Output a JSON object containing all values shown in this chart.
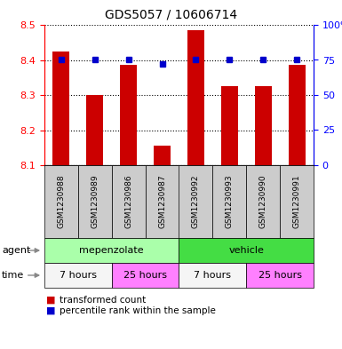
{
  "title": "GDS5057 / 10606714",
  "samples": [
    "GSM1230988",
    "GSM1230989",
    "GSM1230986",
    "GSM1230987",
    "GSM1230992",
    "GSM1230993",
    "GSM1230990",
    "GSM1230991"
  ],
  "red_values": [
    8.425,
    8.3,
    8.385,
    8.155,
    8.485,
    8.325,
    8.325,
    8.385
  ],
  "blue_values": [
    75,
    75,
    75,
    72,
    75,
    75,
    75,
    75
  ],
  "ylim_left": [
    8.1,
    8.5
  ],
  "ylim_right": [
    0,
    100
  ],
  "yticks_left": [
    8.1,
    8.2,
    8.3,
    8.4,
    8.5
  ],
  "yticks_right": [
    0,
    25,
    50,
    75,
    100
  ],
  "agent_labels": [
    {
      "label": "mepenzolate",
      "start": 0,
      "end": 4,
      "color": "#aaffaa"
    },
    {
      "label": "vehicle",
      "start": 4,
      "end": 8,
      "color": "#44dd44"
    }
  ],
  "time_labels": [
    {
      "label": "7 hours",
      "start": 0,
      "end": 2,
      "color": "#f5f5f5"
    },
    {
      "label": "25 hours",
      "start": 2,
      "end": 4,
      "color": "#ff80ff"
    },
    {
      "label": "7 hours",
      "start": 4,
      "end": 6,
      "color": "#f5f5f5"
    },
    {
      "label": "25 hours",
      "start": 6,
      "end": 8,
      "color": "#ff80ff"
    }
  ],
  "sample_bg_color": "#cccccc",
  "bar_color": "#cc0000",
  "dot_color": "#0000cc",
  "legend_red": "transformed count",
  "legend_blue": "percentile rank within the sample",
  "agent_row_label": "agent",
  "time_row_label": "time"
}
